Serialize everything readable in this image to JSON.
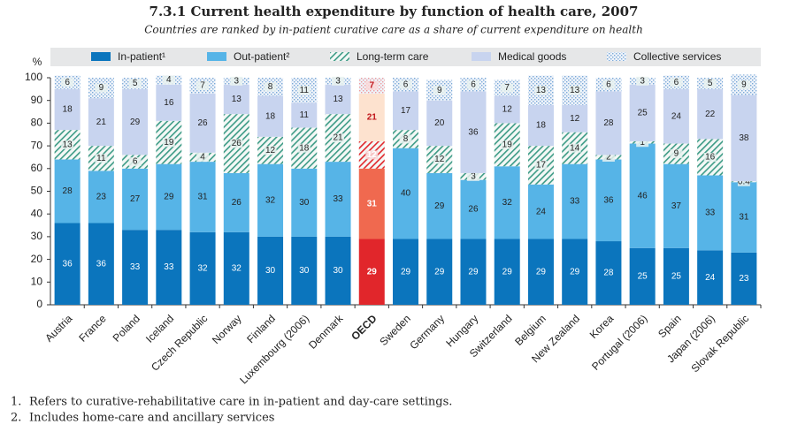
{
  "chart_data": {
    "type": "stacked_bar",
    "title": "7.3.1  Current health expenditure by function of health care, 2007",
    "subtitle": "Countries are ranked by in-patient curative care as a share of current expenditure on health",
    "y_unit": "%",
    "categories": [
      "Austria",
      "France",
      "Poland",
      "Iceland",
      "Czech Republic",
      "Norway",
      "Finland",
      "Luxembourg (2006)",
      "Denmark",
      "OECD",
      "Sweden",
      "Germany",
      "Hungary",
      "Switzerland",
      "Belgium",
      "New Zealand",
      "Korea",
      "Portugal (2006)",
      "Spain",
      "Japan (2006)",
      "Slovak Republic"
    ],
    "highlight_index": 9,
    "series": [
      {
        "name": "In-patient¹",
        "color": "#0b75bd",
        "highlight_color": "#e1262b",
        "pattern": "solid",
        "label_color": "#ffffff",
        "values": [
          36,
          36,
          33,
          33,
          32,
          32,
          30,
          30,
          30,
          29,
          29,
          29,
          29,
          29,
          29,
          29,
          28,
          25,
          25,
          24,
          23
        ]
      },
      {
        "name": "Out-patient²",
        "color": "#56b4e7",
        "highlight_color": "#f0694f",
        "pattern": "solid",
        "label_color": "#222222",
        "values": [
          28,
          23,
          27,
          29,
          31,
          26,
          32,
          30,
          33,
          31,
          40,
          29,
          26,
          32,
          24,
          33,
          36,
          46,
          37,
          33,
          31
        ]
      },
      {
        "name": "Long-term care",
        "color": "#3d9b86",
        "highlight_color": "#e1262b",
        "pattern": "hatch",
        "label_color": "#222222",
        "values": [
          13,
          11,
          6,
          19,
          4,
          26,
          12,
          18,
          21,
          12,
          8,
          12,
          3,
          19,
          17,
          14,
          2,
          1,
          9,
          16,
          0.4
        ]
      },
      {
        "name": "Medical goods",
        "color": "#c8d4ef",
        "highlight_color": "#fde2cf",
        "pattern": "solid",
        "label_color": "#222222",
        "values": [
          18,
          21,
          29,
          16,
          26,
          13,
          18,
          11,
          13,
          21,
          17,
          20,
          36,
          12,
          18,
          12,
          28,
          25,
          24,
          22,
          38
        ]
      },
      {
        "name": "Collective services",
        "color": "#7aa9d8",
        "highlight_color": "#f09a9a",
        "pattern": "dots",
        "label_color": "#222222",
        "values": [
          6,
          9,
          5,
          4,
          7,
          3,
          8,
          11,
          3,
          7,
          6,
          9,
          6,
          7,
          13,
          13,
          6,
          3,
          6,
          5,
          9
        ]
      }
    ],
    "ylim": [
      0,
      100
    ],
    "yticks": [
      0,
      10,
      20,
      30,
      40,
      50,
      60,
      70,
      80,
      90,
      100
    ],
    "grid": false,
    "notes": [
      {
        "number": "1.",
        "text": "Refers to curative-rehabilitative care in in-patient and day-care settings."
      },
      {
        "number": "2.",
        "text": "Includes home-care and ancillary services"
      }
    ]
  }
}
